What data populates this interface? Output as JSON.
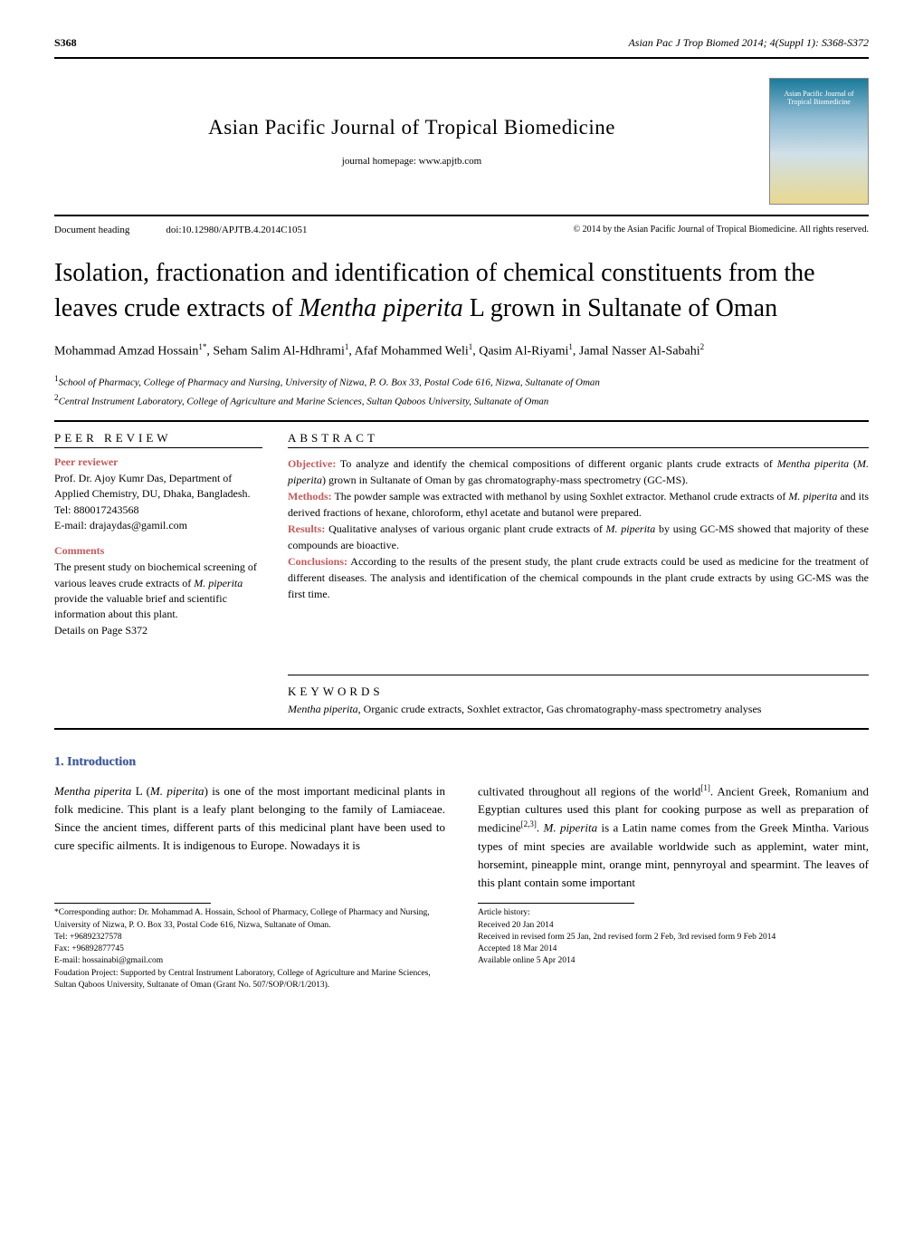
{
  "page_number": "S368",
  "running_head": "Asian Pac J Trop Biomed 2014; 4(Suppl 1): S368-S372",
  "journal": {
    "title": "Asian Pacific Journal of Tropical Biomedicine",
    "homepage": "journal homepage: www.apjtb.com",
    "cover_label": "Asian Pacific Journal of Tropical Biomedicine"
  },
  "meta": {
    "doc_heading": "Document heading",
    "doi": "doi:10.12980/APJTB.4.2014C1051",
    "copyright": "© 2014 by the Asian Pacific Journal of Tropical Biomedicine. All rights reserved."
  },
  "article_title_pre": "Isolation, fractionation and identification of chemical constituents from the leaves crude extracts of ",
  "article_title_em": "Mentha piperita",
  "article_title_post": " L grown in Sultanate of Oman",
  "authors_html": "Mohammad Amzad Hossain<sup>1*</sup>, Seham Salim Al-Hdhrami<sup>1</sup>, Afaf Mohammed Weli<sup>1</sup>, Qasim Al-Riyami<sup>1</sup>, Jamal Nasser Al-Sabahi<sup>2</sup>",
  "affil1_sup": "1",
  "affil1": "School of Pharmacy, College of Pharmacy and Nursing, University of Nizwa, P. O. Box 33, Postal Code 616, Nizwa, Sultanate of Oman",
  "affil2_sup": "2",
  "affil2": "Central Instrument Laboratory, College of Agriculture and Marine Sciences, Sultan Qaboos University, Sultanate of Oman",
  "peer": {
    "head": "PEER REVIEW",
    "reviewer_label": "Peer reviewer",
    "reviewer_body": "Prof. Dr. Ajoy Kumr Das, Department of Applied Chemistry, DU, Dhaka, Bangladesh.",
    "tel": "Tel: 880017243568",
    "email": "E-mail: drajaydas@gamil.com",
    "comments_label": "Comments",
    "comments_body_pre": "The present study on biochemical screening of various leaves crude extracts of ",
    "comments_body_em": "M. piperita",
    "comments_body_post": " provide the valuable brief and scientific information about this plant.",
    "details": "Details on Page S372"
  },
  "abstract": {
    "head": "ABSTRACT",
    "objective_label": "Objective:",
    "objective_pre": " To analyze and identify the chemical compositions of different organic plants crude extracts of ",
    "objective_em1": "Mentha piperita",
    "objective_mid": " (",
    "objective_em2": "M. piperita",
    "objective_post": ") grown in Sultanate of Oman by gas chromatography-mass spectrometry (GC-MS).",
    "methods_label": "Methods:",
    "methods_pre": " The powder sample was extracted with methanol by using Soxhlet extractor. Methanol crude extracts of ",
    "methods_em": "M. piperita",
    "methods_post": " and its derived fractions of hexane, chloroform, ethyl acetate and butanol were prepared.",
    "results_label": "Results:",
    "results_pre": " Qualitative analyses of various organic plant crude extracts of ",
    "results_em": "M. piperita",
    "results_post": " by using GC-MS showed that majority of these compounds are bioactive.",
    "conclusions_label": "Conclusions:",
    "conclusions": " According to the results of the present study, the plant crude extracts could be used as medicine for the treatment of different diseases. The analysis and identification of the chemical compounds in the plant crude extracts by using GC-MS was the first time."
  },
  "keywords": {
    "head": "KEYWORDS",
    "body_em": "Mentha piperita",
    "body_post": ",  Organic crude extracts, Soxhlet extractor, Gas chromatography-mass spectrometry analyses"
  },
  "intro": {
    "head": "1. Introduction",
    "col1_pre": "   Mentha piperita",
    "col1_mid1": " L (",
    "col1_em2": "M. piperita",
    "col1_post": ") is one of the most important medicinal plants in folk medicine. This plant is a leafy plant belonging to the family of Lamiaceae. Since the ancient times, different parts of this medicinal plant have been used to cure specific ailments. It is indigenous to Europe. Nowadays it is",
    "col2_pre": "cultivated throughout all regions of the world",
    "col2_ref1": "[1]",
    "col2_mid1": ". Ancient Greek, Romanium and Egyptian cultures used this plant for cooking purpose as well as preparation of medicine",
    "col2_ref2": "[2,3]",
    "col2_mid2": ". ",
    "col2_em": "M. piperita",
    "col2_post": " is a Latin name comes from the Greek Mintha. Various types of mint species are available worldwide such as applemint, water mint, horsemint, pineapple mint, orange mint, pennyroyal and spearmint. The leaves of this plant contain some important"
  },
  "footnotes": {
    "corresponding": "   *Corresponding author: Dr. Mohammad A. Hossain, School of Pharmacy, College of Pharmacy and Nursing, University of Nizwa, P. O. Box 33, Postal Code 616, Nizwa, Sultanate of Oman.",
    "tel": "     Tel: +96892327578",
    "fax": "     Fax: +96892877745",
    "email": "     E-mail: hossainabi@gmail.com",
    "foundation": "   Foudation Project: Supported by Central Instrument Laboratory, College of Agriculture and Marine Sciences, Sultan Qaboos University, Sultanate of Oman (Grant No. 507/SOP/OR/1/2013).",
    "history_label": "Article history:",
    "received": "Received 20 Jan 2014",
    "revised": "Received in revised form 25 Jan, 2nd revised form 2 Feb, 3rd revised form 9 Feb 2014",
    "accepted": "Accepted 18 Mar 2014",
    "online": "Available online 5 Apr 2014"
  },
  "colors": {
    "accent_red": "#c55a5a",
    "accent_blue": "#3a5a9a"
  }
}
